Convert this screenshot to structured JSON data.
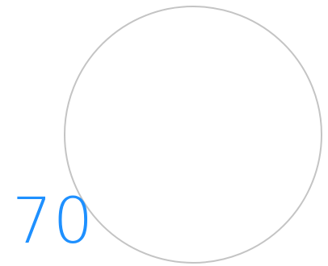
{
  "gauge": {
    "value": "70",
    "value_color": "#1e90ff",
    "ring_color": "#c4c4c4"
  }
}
